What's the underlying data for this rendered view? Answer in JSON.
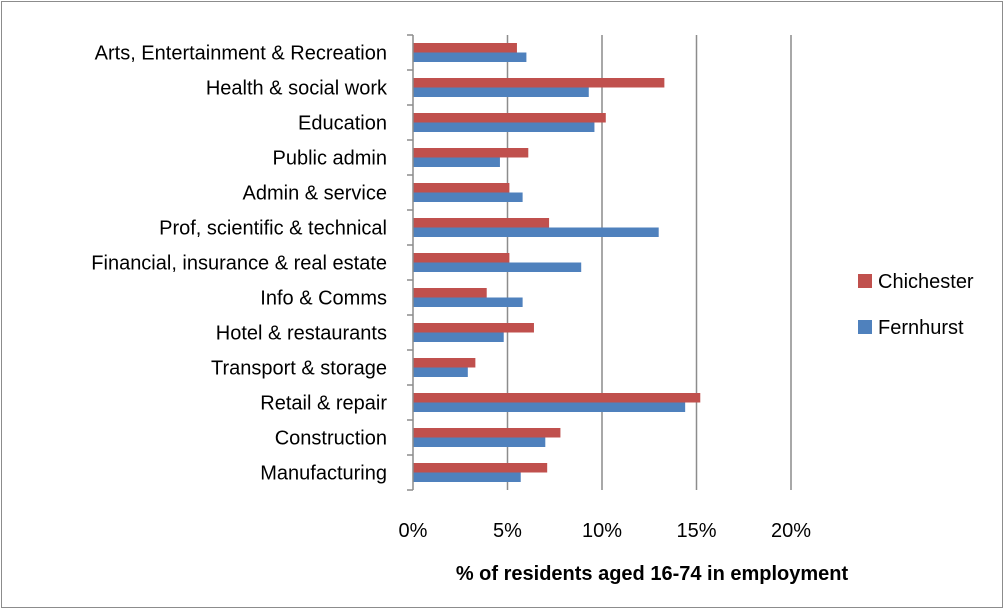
{
  "chart_data": {
    "type": "bar",
    "orientation": "horizontal",
    "categories": [
      "Arts, Entertainment & Recreation",
      "Health & social work",
      "Education",
      "Public admin",
      "Admin & service",
      "Prof, scientific & technical",
      "Financial, insurance & real estate",
      "Info & Comms",
      "Hotel & restaurants",
      "Transport & storage",
      "Retail & repair",
      "Construction",
      "Manufacturing"
    ],
    "series": [
      {
        "name": "Chichester",
        "color": "#c0504d",
        "values": [
          5.5,
          13.3,
          10.2,
          6.1,
          5.1,
          7.2,
          5.1,
          3.9,
          6.4,
          3.3,
          15.2,
          7.8,
          7.1
        ]
      },
      {
        "name": "Fernhurst",
        "color": "#4f81bd",
        "values": [
          6.0,
          9.3,
          9.6,
          4.6,
          5.8,
          13.0,
          8.9,
          5.8,
          4.8,
          2.9,
          14.4,
          7.0,
          5.7
        ]
      }
    ],
    "xlim": [
      0,
      20
    ],
    "xticks": [
      "0%",
      "5%",
      "10%",
      "15%",
      "20%"
    ],
    "xlabel": "% of residents aged 16-74 in employment",
    "ylabel": "",
    "title": "",
    "grid": "vertical",
    "legend_position": "right"
  }
}
